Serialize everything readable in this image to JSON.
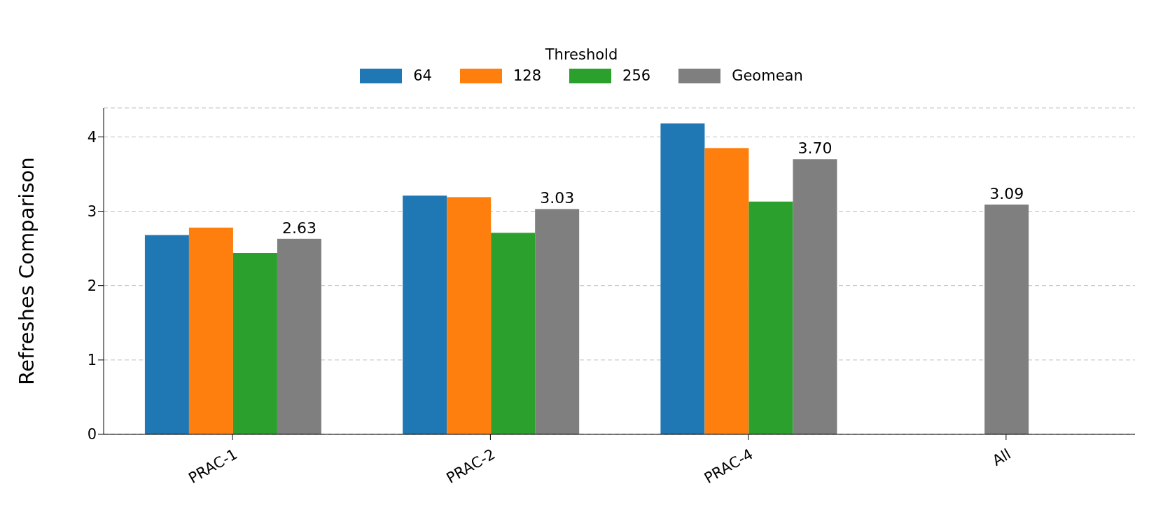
{
  "chart_data": {
    "type": "bar",
    "ylabel": "Refreshes Comparison",
    "legend_title": "Threshold",
    "legend": "top",
    "grid": "y",
    "categories": [
      "PRAC-1",
      "PRAC-2",
      "PRAC-4",
      "All"
    ],
    "ylim": [
      0,
      4.39
    ],
    "yticks": [
      0,
      1,
      2,
      3,
      4
    ],
    "series": [
      {
        "name": "64",
        "color": "#1f77b4",
        "values": [
          2.68,
          3.21,
          4.18,
          null
        ]
      },
      {
        "name": "128",
        "color": "#ff7f0e",
        "values": [
          2.78,
          3.19,
          3.85,
          null
        ]
      },
      {
        "name": "256",
        "color": "#2ca02c",
        "values": [
          2.44,
          2.71,
          3.13,
          null
        ]
      },
      {
        "name": "Geomean",
        "color": "#7f7f7f",
        "values": [
          2.63,
          3.03,
          3.7,
          3.09
        ],
        "value_labels": [
          "2.63",
          "3.03",
          "3.70",
          "3.09"
        ]
      }
    ]
  }
}
